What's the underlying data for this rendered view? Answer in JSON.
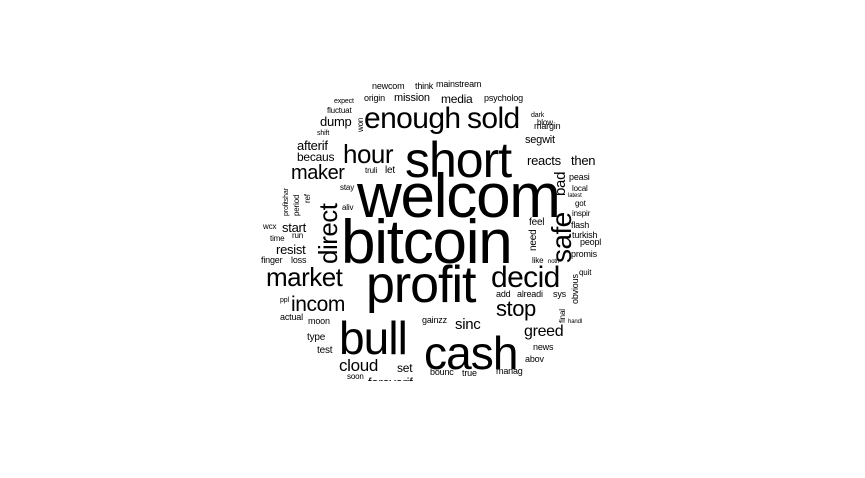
{
  "words": {
    "bitcoin": "bitcoin",
    "welcom": "welcom",
    "profit": "profit",
    "short": "short",
    "cash": "cash",
    "bull": "bull",
    "enough": "enough",
    "sold": "sold",
    "decid": "decid",
    "hour": "hour",
    "market": "market",
    "direct": "direct",
    "safe": "safe",
    "stop": "stop",
    "maker": "maker",
    "incom": "incom",
    "sinc": "sinc",
    "greed": "greed",
    "cloud": "cloud",
    "afterif": "afterif",
    "becaus": "becaus",
    "dump": "dump",
    "resist": "resist",
    "start": "start",
    "reacts": "reacts",
    "then": "then",
    "segwit": "segwit",
    "mission": "mission",
    "media": "media",
    "psycholog": "psycholog",
    "mainstream": "mainstream",
    "newcom": "newcom",
    "think": "think",
    "origin": "origin",
    "expect": "expect",
    "fluctuat": "fluctuat",
    "shift": "shift",
    "won": "won",
    "dark": "dark",
    "blow": "blow",
    "margin": "margin",
    "stay": "stay",
    "truli": "truli",
    "let": "let",
    "bad": "bad",
    "peasi": "peasi",
    "local": "local",
    "latest": "latest",
    "got": "got",
    "inspir": "inspir",
    "flash": "flash",
    "turkish": "turkish",
    "peopl": "peopl",
    "promis": "promis",
    "quit": "quit",
    "obvious": "obvious",
    "sys": "sys",
    "alreadi": "alreadi",
    "add": "add",
    "like": "like",
    "noth": "noth",
    "need": "need",
    "feel": "feel",
    "aliv": "aliv",
    "ref": "ref",
    "period": "period",
    "profitshar": "profitshar",
    "wcx": "wcx",
    "time": "time",
    "run": "run",
    "finger": "finger",
    "loss": "loss",
    "ppl": "ppl",
    "actual": "actual",
    "moon": "moon",
    "gainzz": "gainzz",
    "final": "final",
    "handl": "handl",
    "type": "type",
    "test": "test",
    "news": "news",
    "abov": "abov",
    "set": "set",
    "bounc": "bounc",
    "true": "true",
    "manag": "manag",
    "soon": "soon",
    "bottom_cut": "foreverif"
  }
}
